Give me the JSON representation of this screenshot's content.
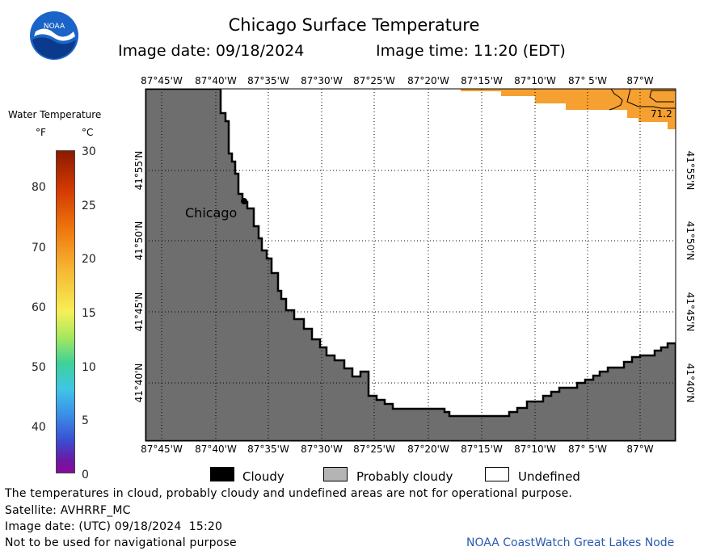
{
  "header": {
    "title": "Chicago Surface Temperature",
    "image_date_label": "Image date: 09/18/2024",
    "image_time_label": "Image time: 11:20 (EDT)",
    "logo_text": "NOAA"
  },
  "scale": {
    "heading": "Water Temperature",
    "unit_f": "°F",
    "unit_c": "°C",
    "fahrenheit_ticks": [
      "80",
      "70",
      "60",
      "50",
      "40"
    ],
    "celsius_ticks": [
      "30",
      "25",
      "20",
      "15",
      "10",
      "5",
      "0"
    ]
  },
  "map": {
    "lon_labels": [
      "87°45'W",
      "87°40'W",
      "87°35'W",
      "87°30'W",
      "87°25'W",
      "87°20'W",
      "87°15'W",
      "87°10'W",
      "87° 5'W",
      "87°W"
    ],
    "lat_labels": [
      "41°55'N",
      "41°50'N",
      "41°45'N",
      "41°40'N"
    ],
    "city_label": "Chicago",
    "temp_annotation": "71.2",
    "colors": {
      "land": "#6e6e6e",
      "warm_water": "#f5a030",
      "undefined": "#ffffff"
    }
  },
  "legend": {
    "cloudy": "Cloudy",
    "probably_cloudy": "Probably cloudy",
    "undefined": "Undefined",
    "colors": {
      "cloudy": "#000000",
      "probably_cloudy": "#b4b4b4",
      "undefined": "#ffffff"
    }
  },
  "footer": {
    "disclaimer": "The temperatures in cloud, probably cloudy and undefined areas are not for operational purpose.",
    "satellite": "Satellite: AVHRRF_MC",
    "utc_date": "Image date: (UTC) 09/18/2024  15:20",
    "nav_warning": "Not to be used for navigational purpose",
    "credit": "NOAA CoastWatch Great Lakes Node"
  }
}
